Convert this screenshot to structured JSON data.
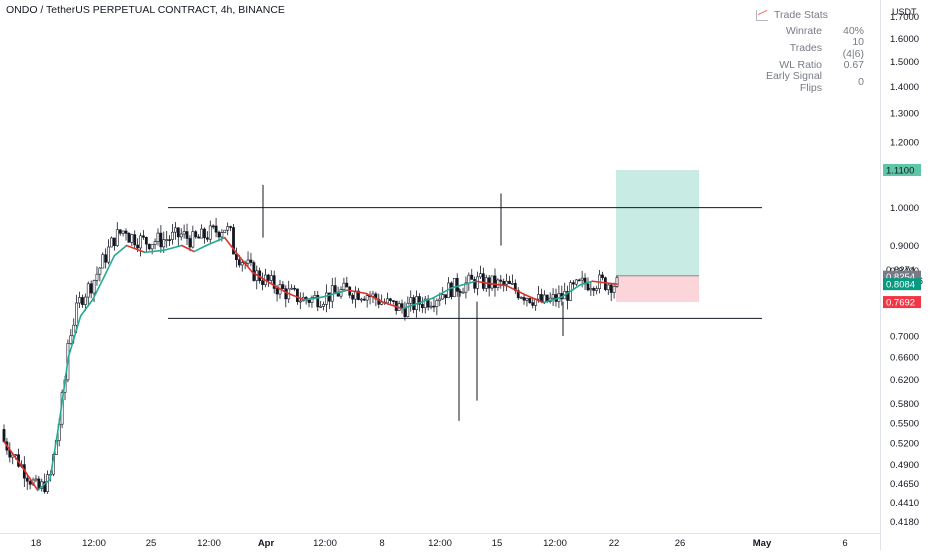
{
  "header": {
    "title": "ONDO / TetherUS PERPETUAL CONTRACT, 4h, BINANCE"
  },
  "stats_panel": {
    "title": "Trade Stats",
    "icon": "chart-icon",
    "rows": [
      {
        "label": "Winrate",
        "value": "40%"
      },
      {
        "label": "Trades",
        "value": "10 (4|6)"
      },
      {
        "label": "WL Ratio",
        "value": "0.67"
      },
      {
        "label": "Early Signal Flips",
        "value": "0"
      }
    ]
  },
  "price_axis": {
    "currency": "USDT",
    "ticks": [
      "1.7000",
      "1.6000",
      "1.5000",
      "1.4000",
      "1.3000",
      "1.2000",
      "1.0000",
      "0.9000",
      "0.8400",
      "0.7000",
      "0.6600",
      "0.6200",
      "0.5800",
      "0.5500",
      "0.5200",
      "0.4900",
      "0.4650",
      "0.4410",
      "0.4180"
    ]
  },
  "price_labels": {
    "target": {
      "text": "1.1100",
      "color": "#5ec5a6"
    },
    "last_price": "0.8274",
    "countdown": "02:46:16",
    "ma_slow": {
      "text": "0.8254",
      "color": "#787b86"
    },
    "ma_fast": {
      "text": "0.8084",
      "color": "#089981"
    },
    "stop": {
      "text": "0.7692",
      "color": "#f23645"
    }
  },
  "time_axis": {
    "ticks": [
      "18",
      "12:00",
      "25",
      "12:00",
      "Apr",
      "12:00",
      "8",
      "12:00",
      "15",
      "12:00",
      "22",
      "26",
      "May",
      "6"
    ]
  },
  "colors": {
    "candle": "#131722",
    "ma_bull": "#22ab94",
    "ma_bear": "#e0302b",
    "level_line": "#131722",
    "profit_zone": "#c8ebe4",
    "loss_zone": "#fbd5d9"
  },
  "chart_data": {
    "type": "candlestick",
    "symbol": "ONDO / TetherUS PERPETUAL CONTRACT",
    "interval": "4h",
    "exchange": "BINANCE",
    "y_scale": "log",
    "ylim": [
      0.405,
      1.78
    ],
    "x_categories": [
      "18",
      "12:00",
      "25",
      "12:00",
      "Apr",
      "12:00",
      "8",
      "12:00",
      "15",
      "12:00",
      "22",
      "26",
      "May",
      "6"
    ],
    "ma_line": [
      [
        0,
        0.522
      ],
      [
        0.027,
        0.49
      ],
      [
        0.055,
        0.456
      ],
      [
        0.075,
        0.47
      ],
      [
        0.09,
        0.55
      ],
      [
        0.105,
        0.66
      ],
      [
        0.125,
        0.74
      ],
      [
        0.145,
        0.775
      ],
      [
        0.165,
        0.83
      ],
      [
        0.18,
        0.875
      ],
      [
        0.2,
        0.9
      ],
      [
        0.23,
        0.883
      ],
      [
        0.26,
        0.888
      ],
      [
        0.29,
        0.9
      ],
      [
        0.31,
        0.885
      ],
      [
        0.33,
        0.9
      ],
      [
        0.36,
        0.92
      ],
      [
        0.38,
        0.88
      ],
      [
        0.405,
        0.836
      ],
      [
        0.435,
        0.81
      ],
      [
        0.46,
        0.79
      ],
      [
        0.49,
        0.774
      ],
      [
        0.52,
        0.78
      ],
      [
        0.56,
        0.795
      ],
      [
        0.59,
        0.788
      ],
      [
        0.62,
        0.768
      ],
      [
        0.65,
        0.755
      ],
      [
        0.7,
        0.778
      ],
      [
        0.73,
        0.8
      ],
      [
        0.77,
        0.815
      ],
      [
        0.79,
        0.81
      ],
      [
        0.82,
        0.805
      ],
      [
        0.85,
        0.785
      ],
      [
        0.88,
        0.768
      ],
      [
        0.91,
        0.78
      ],
      [
        0.94,
        0.807
      ],
      [
        0.96,
        0.815
      ],
      [
        1.0,
        0.8084
      ]
    ],
    "levels": {
      "resistance": 1.0,
      "support": 0.735
    },
    "trade": {
      "entry": 0.8274,
      "target": 1.11,
      "stop": 0.7692
    },
    "last_price": 0.8274,
    "ma_values": {
      "slow": 0.8254,
      "fast": 0.8084
    }
  }
}
